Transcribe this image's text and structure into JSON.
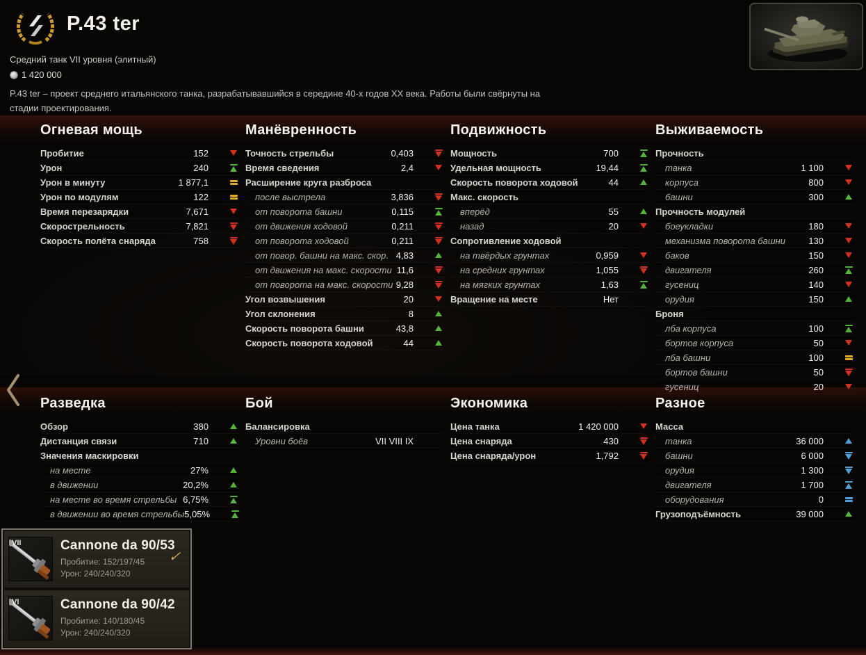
{
  "header": {
    "title": "P.43 ter",
    "subtitle": "Средний танк VII уровня (элитный)",
    "price": "1 420 000",
    "description": "P.43 ter – проект среднего итальянского танка, разрабатывавшийся в середине 40-х годов XX века. Работы были свёрнуты на стадии проектирования."
  },
  "colors": {
    "green": "#53b43a",
    "red": "#d3301f",
    "yellow": "#e0ac25",
    "blue": "#4f9fd8",
    "gold": "#c9992e"
  },
  "section_rows": [
    [
      {
        "id": "firepower",
        "title": "Огневая мощь",
        "rows": [
          {
            "label": "Пробитие",
            "value": "152",
            "ind": "down",
            "style": "main"
          },
          {
            "label": "Урон",
            "value": "240",
            "ind": "max",
            "style": "main"
          },
          {
            "label": "Урон в минуту",
            "value": "1 877,1",
            "ind": "avg",
            "style": "main"
          },
          {
            "label": "Урон по модулям",
            "value": "122",
            "ind": "avg",
            "style": "main"
          },
          {
            "label": "Время перезарядки",
            "value": "7,671",
            "ind": "down",
            "style": "main"
          },
          {
            "label": "Скорострельность",
            "value": "7,821",
            "ind": "min",
            "style": "main"
          },
          {
            "label": "Скорость полёта снаряда",
            "value": "758",
            "ind": "min",
            "style": "main"
          }
        ]
      },
      {
        "id": "maneuverability",
        "title": "Манёвренность",
        "rows": [
          {
            "label": "Точность стрельбы",
            "value": "0,403",
            "ind": "min",
            "style": "main"
          },
          {
            "label": "Время сведения",
            "value": "2,4",
            "ind": "down",
            "style": "main"
          },
          {
            "label": "Расширение круга разброса",
            "value": "",
            "ind": "none",
            "style": "subheader"
          },
          {
            "label": "после выстрела",
            "value": "3,836",
            "ind": "min",
            "style": "sub"
          },
          {
            "label": "от поворота башни",
            "value": "0,115",
            "ind": "max",
            "style": "sub"
          },
          {
            "label": "от движения ходовой",
            "value": "0,211",
            "ind": "min",
            "style": "sub"
          },
          {
            "label": "от поворота ходовой",
            "value": "0,211",
            "ind": "min",
            "style": "sub"
          },
          {
            "label": "от повор. башни на макс. скор.",
            "value": "4,83",
            "ind": "up",
            "style": "sub"
          },
          {
            "label": "от движения на макс. скорости",
            "value": "11,6",
            "ind": "min",
            "style": "sub"
          },
          {
            "label": "от поворота на макс. скорости",
            "value": "9,28",
            "ind": "min",
            "style": "sub"
          },
          {
            "label": "Угол возвышения",
            "value": "20",
            "ind": "down",
            "style": "main"
          },
          {
            "label": "Угол склонения",
            "value": "8",
            "ind": "up",
            "style": "main"
          },
          {
            "label": "Скорость поворота башни",
            "value": "43,8",
            "ind": "up",
            "style": "main"
          },
          {
            "label": "Скорость поворота ходовой",
            "value": "44",
            "ind": "up",
            "style": "main"
          }
        ]
      },
      {
        "id": "mobility",
        "title": "Подвижность",
        "rows": [
          {
            "label": "Мощность",
            "value": "700",
            "ind": "max",
            "style": "main"
          },
          {
            "label": "Удельная мощность",
            "value": "19,44",
            "ind": "max",
            "style": "main"
          },
          {
            "label": "Скорость поворота ходовой",
            "value": "44",
            "ind": "up",
            "style": "main"
          },
          {
            "label": "Макс. скорость",
            "value": "",
            "ind": "none",
            "style": "subheader"
          },
          {
            "label": "вперёд",
            "value": "55",
            "ind": "up",
            "style": "sub"
          },
          {
            "label": "назад",
            "value": "20",
            "ind": "down",
            "style": "sub"
          },
          {
            "label": "Сопротивление ходовой",
            "value": "",
            "ind": "none",
            "style": "subheader"
          },
          {
            "label": "на твёрдых грунтах",
            "value": "0,959",
            "ind": "down",
            "style": "sub"
          },
          {
            "label": "на средних грунтах",
            "value": "1,055",
            "ind": "min",
            "style": "sub"
          },
          {
            "label": "на мягких грунтах",
            "value": "1,63",
            "ind": "max",
            "style": "sub"
          },
          {
            "label": "Вращение на месте",
            "value": "Нет",
            "ind": "none",
            "style": "main"
          }
        ]
      },
      {
        "id": "survivability",
        "title": "Выживаемость",
        "rows": [
          {
            "label": "Прочность",
            "value": "",
            "ind": "none",
            "style": "subheader"
          },
          {
            "label": "танка",
            "value": "1 100",
            "ind": "down",
            "style": "sub"
          },
          {
            "label": "корпуса",
            "value": "800",
            "ind": "down",
            "style": "sub"
          },
          {
            "label": "башни",
            "value": "300",
            "ind": "up",
            "style": "sub"
          },
          {
            "label": "Прочность модулей",
            "value": "",
            "ind": "none",
            "style": "subheader"
          },
          {
            "label": "боеукладки",
            "value": "180",
            "ind": "down",
            "style": "sub"
          },
          {
            "label": "механизма поворота башни",
            "value": "130",
            "ind": "down",
            "style": "sub"
          },
          {
            "label": "баков",
            "value": "150",
            "ind": "down",
            "style": "sub"
          },
          {
            "label": "двигателя",
            "value": "260",
            "ind": "max",
            "style": "sub"
          },
          {
            "label": "гусениц",
            "value": "140",
            "ind": "down",
            "style": "sub"
          },
          {
            "label": "орудия",
            "value": "150",
            "ind": "up",
            "style": "sub"
          },
          {
            "label": "Броня",
            "value": "",
            "ind": "none",
            "style": "subheader"
          },
          {
            "label": "лба корпуса",
            "value": "100",
            "ind": "max",
            "style": "sub"
          },
          {
            "label": "бортов корпуса",
            "value": "50",
            "ind": "down",
            "style": "sub"
          },
          {
            "label": "лба башни",
            "value": "100",
            "ind": "avg",
            "style": "sub"
          },
          {
            "label": "бортов башни",
            "value": "50",
            "ind": "min",
            "style": "sub"
          },
          {
            "label": "гусениц",
            "value": "20",
            "ind": "down",
            "style": "sub"
          }
        ]
      }
    ],
    [
      {
        "id": "recon",
        "title": "Разведка",
        "rows": [
          {
            "label": "Обзор",
            "value": "380",
            "ind": "up",
            "style": "main"
          },
          {
            "label": "Дистанция связи",
            "value": "710",
            "ind": "up",
            "style": "main"
          },
          {
            "label": "Значения маскировки",
            "value": "",
            "ind": "none",
            "style": "subheader"
          },
          {
            "label": "на месте",
            "value": "27%",
            "ind": "up",
            "style": "sub"
          },
          {
            "label": "в движении",
            "value": "20,2%",
            "ind": "up",
            "style": "sub"
          },
          {
            "label": "на месте во время стрельбы",
            "value": "6,75%",
            "ind": "max",
            "style": "sub"
          },
          {
            "label": "в движении во время стрельбы",
            "value": "5,05%",
            "ind": "max",
            "style": "sub"
          }
        ]
      },
      {
        "id": "battle",
        "title": "Бой",
        "rows": [
          {
            "label": "Балансировка",
            "value": "",
            "ind": "none",
            "style": "subheader"
          },
          {
            "label": "Уровни боёв",
            "value": "VII VIII IX",
            "ind": "none",
            "style": "sub"
          }
        ]
      },
      {
        "id": "economy",
        "title": "Экономика",
        "rows": [
          {
            "label": "Цена танка",
            "value": "1 420 000",
            "ind": "down",
            "style": "main"
          },
          {
            "label": "Цена снаряда",
            "value": "430",
            "ind": "min",
            "style": "main"
          },
          {
            "label": "Цена снаряда/урон",
            "value": "1,792",
            "ind": "min",
            "style": "main"
          }
        ]
      },
      {
        "id": "misc",
        "title": "Разное",
        "rows": [
          {
            "label": "Масса",
            "value": "",
            "ind": "none",
            "style": "subheader"
          },
          {
            "label": "танка",
            "value": "36 000",
            "ind": "b-up",
            "style": "sub"
          },
          {
            "label": "башни",
            "value": "6 000",
            "ind": "b-min",
            "style": "sub"
          },
          {
            "label": "орудия",
            "value": "1 300",
            "ind": "b-min",
            "style": "sub"
          },
          {
            "label": "двигателя",
            "value": "1 700",
            "ind": "b-max",
            "style": "sub"
          },
          {
            "label": "оборудования",
            "value": "0",
            "ind": "b-avg",
            "style": "sub"
          },
          {
            "label": "Грузоподъёмность",
            "value": "39 000",
            "ind": "up",
            "style": "main"
          }
        ]
      }
    ]
  ],
  "modules": [
    {
      "tier": "VII",
      "name": "Cannone da 90/53",
      "line1": "Пробитие: 152/197/45",
      "line2": "Урон: 240/240/320",
      "selected": true
    },
    {
      "tier": "VI",
      "name": "Cannone da 90/42",
      "line1": "Пробитие: 140/180/45",
      "line2": "Урон: 240/240/320",
      "selected": false
    }
  ],
  "nav": {
    "back": "‹",
    "selected_mark": "✓"
  }
}
